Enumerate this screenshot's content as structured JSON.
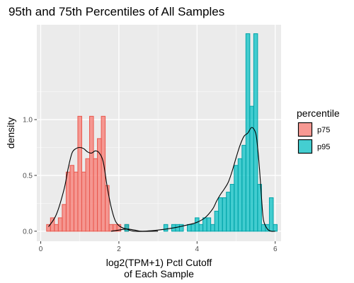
{
  "chart_data": {
    "type": "histogram",
    "title": "95th and 75th Percentiles of All Samples",
    "xlabel": [
      "log2(TPM+1) Pctl Cutoff",
      "of Each Sample"
    ],
    "ylabel": "density",
    "xlim": [
      -0.1,
      6.15
    ],
    "ylim": [
      -0.09,
      1.85
    ],
    "x_ticks": [
      0,
      2,
      4,
      6
    ],
    "y_ticks": [
      0.0,
      0.5,
      1.0
    ],
    "y_tick_labels": [
      "0.0",
      "0.5",
      "1.0"
    ],
    "grid": true,
    "legend_position": "right",
    "legend_title": "percentile",
    "bin_width": 0.1,
    "series": [
      {
        "name": "p75",
        "fill": "#F8766D",
        "line": "#E8574D",
        "bins": [
          [
            0.2,
            0.06
          ],
          [
            0.3,
            0.12
          ],
          [
            0.4,
            0.06
          ],
          [
            0.5,
            0.12
          ],
          [
            0.6,
            0.24
          ],
          [
            0.7,
            0.53
          ],
          [
            0.8,
            0.59
          ],
          [
            0.9,
            0.53
          ],
          [
            1.0,
            1.03
          ],
          [
            1.1,
            0.53
          ],
          [
            1.2,
            0.65
          ],
          [
            1.3,
            1.03
          ],
          [
            1.4,
            0.65
          ],
          [
            1.5,
            0.83
          ],
          [
            1.6,
            1.03
          ],
          [
            1.7,
            0.41
          ],
          [
            1.8,
            0.06
          ],
          [
            1.9,
            0.06
          ],
          [
            2.0,
            0.06
          ],
          [
            2.2,
            0.06
          ]
        ],
        "density": [
          [
            0.2,
            0.04
          ],
          [
            0.4,
            0.15
          ],
          [
            0.6,
            0.38
          ],
          [
            0.7,
            0.56
          ],
          [
            0.8,
            0.7
          ],
          [
            0.9,
            0.74
          ],
          [
            1.0,
            0.75
          ],
          [
            1.1,
            0.74
          ],
          [
            1.2,
            0.71
          ],
          [
            1.3,
            0.7
          ],
          [
            1.4,
            0.72
          ],
          [
            1.5,
            0.7
          ],
          [
            1.6,
            0.62
          ],
          [
            1.7,
            0.4
          ],
          [
            1.8,
            0.22
          ],
          [
            1.9,
            0.1
          ],
          [
            2.0,
            0.05
          ],
          [
            2.1,
            0.03
          ],
          [
            2.2,
            0.02
          ],
          [
            2.4,
            0.0
          ],
          [
            3.0,
            0.0
          ]
        ]
      },
      {
        "name": "p95",
        "fill": "#00BFC4",
        "line": "#00A3A8",
        "bins": [
          [
            2.2,
            0.06
          ],
          [
            3.2,
            0.06
          ],
          [
            3.4,
            0.06
          ],
          [
            3.5,
            0.06
          ],
          [
            3.6,
            0.06
          ],
          [
            3.8,
            0.06
          ],
          [
            3.9,
            0.06
          ],
          [
            4.0,
            0.12
          ],
          [
            4.1,
            0.06
          ],
          [
            4.2,
            0.12
          ],
          [
            4.3,
            0.12
          ],
          [
            4.4,
            0.06
          ],
          [
            4.5,
            0.18
          ],
          [
            4.6,
            0.3
          ],
          [
            4.7,
            0.3
          ],
          [
            4.8,
            0.35
          ],
          [
            4.9,
            0.42
          ],
          [
            5.0,
            0.59
          ],
          [
            5.1,
            0.65
          ],
          [
            5.2,
            0.77
          ],
          [
            5.3,
            1.77
          ],
          [
            5.4,
            1.12
          ],
          [
            5.5,
            1.77
          ],
          [
            5.6,
            0.42
          ],
          [
            5.7,
            0.06
          ],
          [
            5.8,
            0.06
          ],
          [
            5.9,
            0.3
          ],
          [
            6.0,
            0.06
          ]
        ],
        "density": [
          [
            1.8,
            0.0
          ],
          [
            2.0,
            0.01
          ],
          [
            2.2,
            0.02
          ],
          [
            2.4,
            0.01
          ],
          [
            2.6,
            0.0
          ],
          [
            3.0,
            0.01
          ],
          [
            3.4,
            0.03
          ],
          [
            3.8,
            0.06
          ],
          [
            4.0,
            0.08
          ],
          [
            4.2,
            0.12
          ],
          [
            4.4,
            0.2
          ],
          [
            4.5,
            0.27
          ],
          [
            4.6,
            0.33
          ],
          [
            4.7,
            0.38
          ],
          [
            4.8,
            0.44
          ],
          [
            4.9,
            0.54
          ],
          [
            5.0,
            0.66
          ],
          [
            5.1,
            0.77
          ],
          [
            5.2,
            0.85
          ],
          [
            5.3,
            0.88
          ],
          [
            5.4,
            0.93
          ],
          [
            5.5,
            0.88
          ],
          [
            5.55,
            0.75
          ],
          [
            5.6,
            0.55
          ],
          [
            5.65,
            0.3
          ],
          [
            5.7,
            0.1
          ],
          [
            5.8,
            0.02
          ],
          [
            5.9,
            0.0
          ],
          [
            6.0,
            0.0
          ]
        ]
      }
    ]
  }
}
